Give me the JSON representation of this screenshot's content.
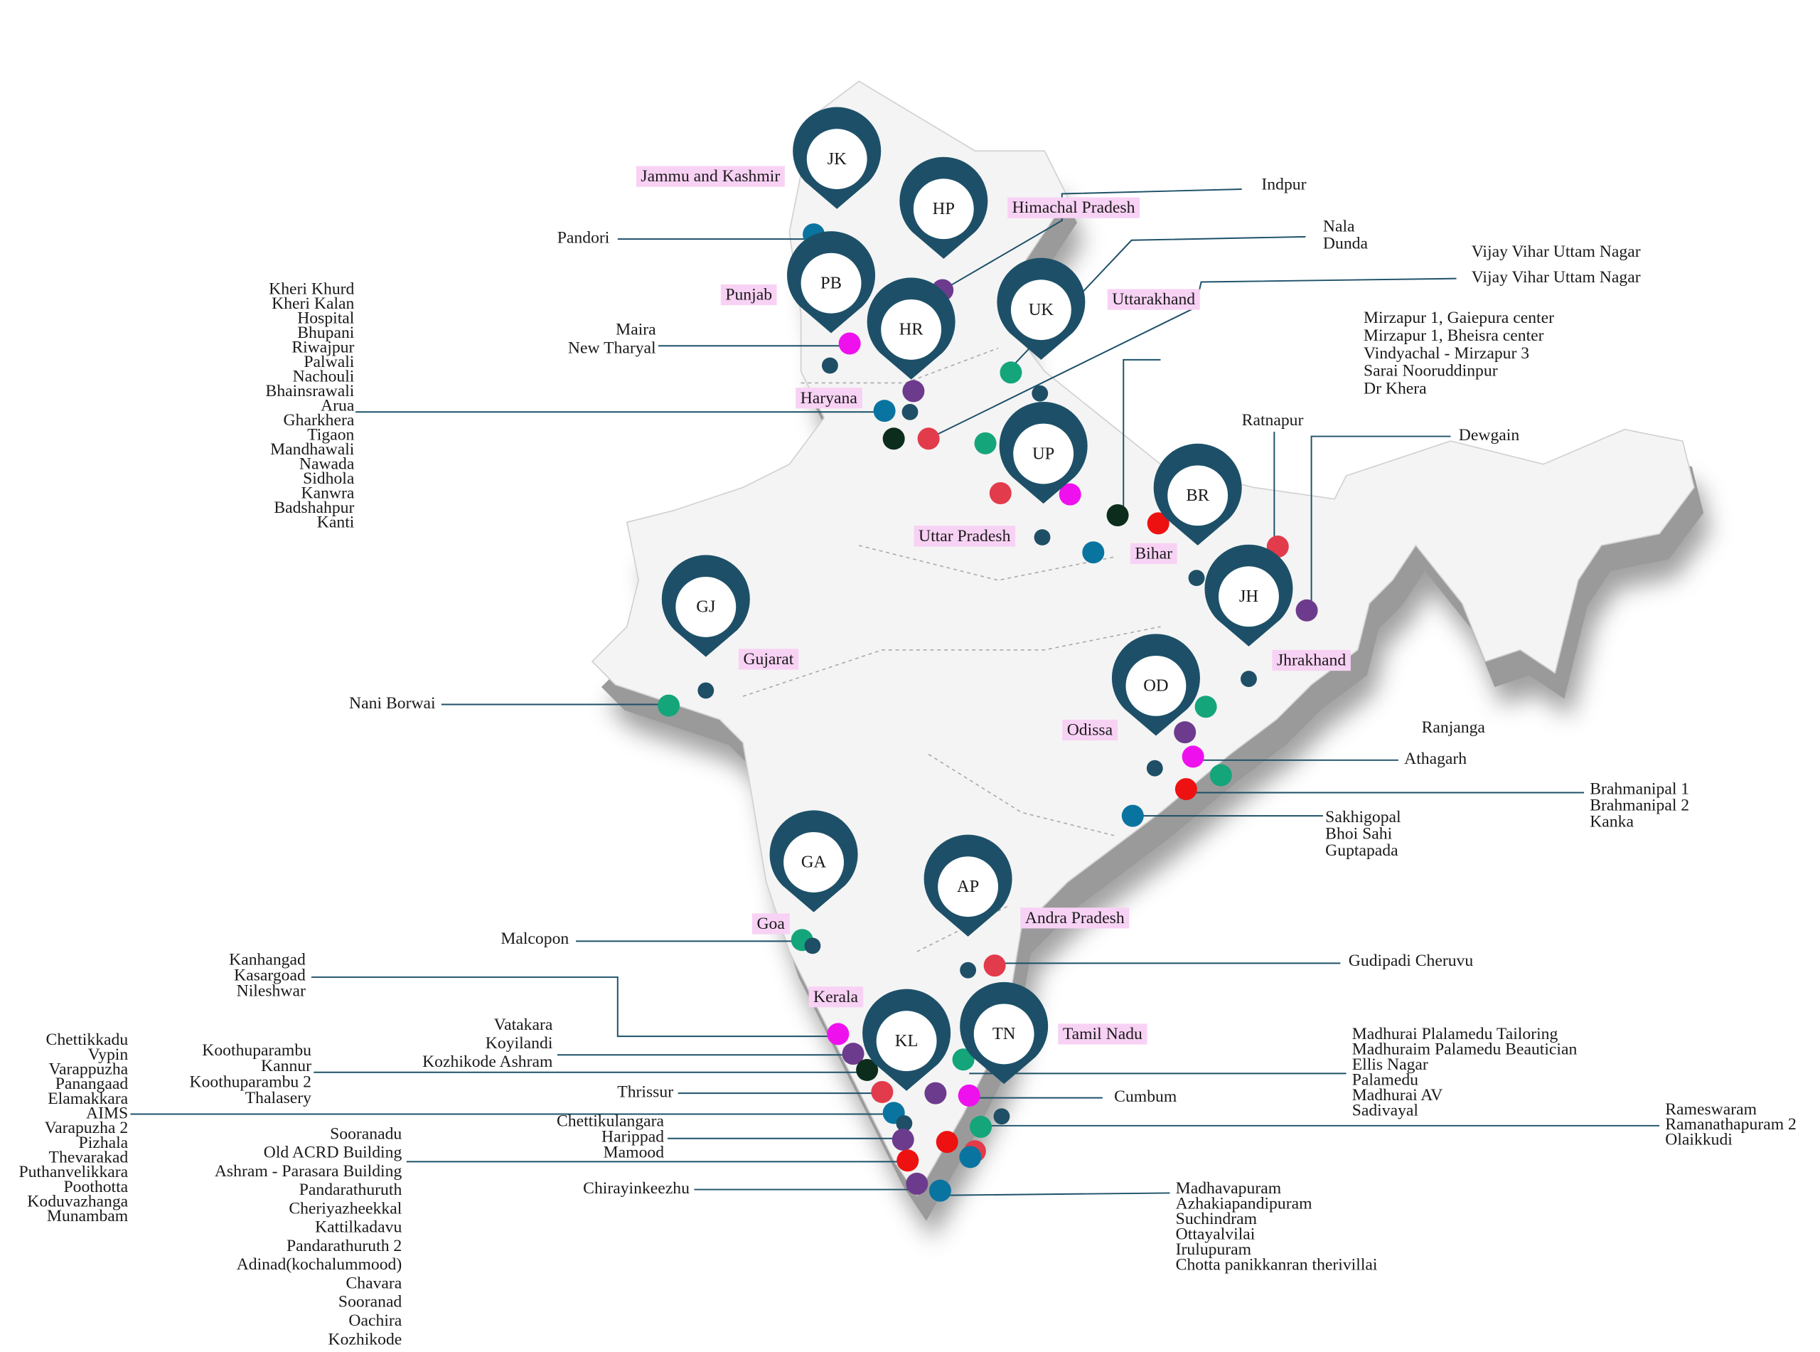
{
  "pins": [
    "JK",
    "HP",
    "PB",
    "HR",
    "UK",
    "UP",
    "BR",
    "JH",
    "GJ",
    "OD",
    "GA",
    "AP",
    "KL",
    "TN"
  ],
  "states": [
    "Jammu and Kashmir",
    "Himachal Pradesh",
    "Punjab",
    "Uttarakhand",
    "Haryana",
    "Uttar Pradesh",
    "Bihar",
    "Gujarat",
    "Jhrakhand",
    "Odissa",
    "Goa",
    "Andra Pradesh",
    "Kerala",
    "Tamil Nadu"
  ],
  "labels": [
    {
      "lines": [
        "Pandori"
      ]
    },
    {
      "lines": [
        "Kheri Khurd",
        "Kheri Kalan",
        "Hospital",
        "Bhupani",
        "Riwajpur",
        "Palwali",
        "Nachouli",
        "Bhainsrawali",
        "Arua",
        "Gharkhera",
        "Tigaon",
        "Mandhawali",
        "Nawada",
        "Sidhola",
        "Kanwra",
        "Badshahpur",
        "Kanti"
      ]
    },
    {
      "lines": [
        "Maira",
        "New Tharyal"
      ]
    },
    {
      "lines": [
        "Indpur"
      ]
    },
    {
      "lines": [
        "Nala",
        "Dunda"
      ]
    },
    {
      "lines": [
        "Vijay Vihar Uttam Nagar"
      ]
    },
    {
      "lines": [
        "Vijay Vihar Uttam Nagar"
      ]
    },
    {
      "lines": [
        "Mirzapur 1, Gaiepura center",
        "Mirzapur 1, Bheisra center",
        "Vindyachal - Mirzapur 3",
        "Sarai Nooruddinpur",
        "Dr Khera"
      ]
    },
    {
      "lines": [
        "Ratnapur"
      ]
    },
    {
      "lines": [
        "Dewgain"
      ]
    },
    {
      "lines": [
        "Nani Borwai"
      ]
    },
    {
      "lines": [
        "Ranjanga"
      ]
    },
    {
      "lines": [
        "Athagarh"
      ]
    },
    {
      "lines": [
        "Brahmanipal 1",
        "Brahmanipal 2",
        "Kanka"
      ]
    },
    {
      "lines": [
        "Sakhigopal",
        "Bhoi Sahi",
        "Guptapada"
      ]
    },
    {
      "lines": [
        "Malcopon"
      ]
    },
    {
      "lines": [
        "Gudipadi Cheruvu"
      ]
    },
    {
      "lines": [
        "Kanhangad",
        "Kasargoad",
        "Nileshwar"
      ]
    },
    {
      "lines": [
        "Vatakara",
        "Koyilandi",
        "Kozhikode Ashram"
      ]
    },
    {
      "lines": [
        "Koothuparambu",
        "Kannur",
        "Koothuparambu 2",
        "Thalasery"
      ]
    },
    {
      "lines": [
        "Chettikkadu",
        "Vypin",
        "Varappuzha",
        "Panangaad",
        "Elamakkara",
        "AIMS",
        "Varapuzha 2",
        "Pizhala",
        "Thevarakad",
        "Puthanvelikkara",
        "Poothotta",
        "Koduvazhanga",
        "Munambam"
      ]
    },
    {
      "lines": [
        "Thrissur"
      ]
    },
    {
      "lines": [
        "Chettikulangara",
        "Harippad",
        "Mamood"
      ]
    },
    {
      "lines": [
        "Sooranadu",
        "Old ACRD Building",
        "Ashram - Parasara Building",
        "Pandarathuruth",
        "Cheriyazheekkal",
        "Kattilkadavu",
        "Pandarathuruth 2",
        "Adinad(kochalummood)",
        "Chavara",
        "Sooranad",
        "Oachira",
        "Kozhikode"
      ]
    },
    {
      "lines": [
        "Chirayinkeezhu"
      ]
    },
    {
      "lines": [
        "Madhurai Plalamedu Tailoring",
        "Madhuraim Palamedu Beautician",
        "Ellis Nagar",
        "Palamedu",
        "Madhurai AV",
        "Sadivayal"
      ]
    },
    {
      "lines": [
        "Cumbum"
      ]
    },
    {
      "lines": [
        "Rameswaram",
        "Ramanathapuram 2",
        "Olaikkudi"
      ]
    },
    {
      "lines": [
        "Madhavapuram",
        "Azhakiapandipuram",
        "Suchindram",
        "Ottayalvilai",
        "Irulupuram",
        "Chotta panikkanran therivillai"
      ]
    }
  ]
}
